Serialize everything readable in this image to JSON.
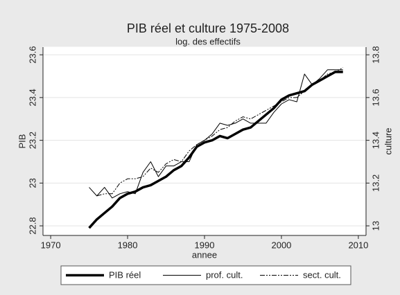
{
  "chart_data": {
    "type": "line",
    "title": "PIB réel et culture 1975-2008",
    "subtitle": "log. des effectifs",
    "x_label": "annee",
    "y_label": "PIB",
    "y2_label": "culture",
    "x": [
      1975,
      1976,
      1977,
      1978,
      1979,
      1980,
      1981,
      1982,
      1983,
      1984,
      1985,
      1986,
      1987,
      1988,
      1989,
      1990,
      1991,
      1992,
      1993,
      1994,
      1995,
      1996,
      1997,
      1998,
      1999,
      2000,
      2001,
      2002,
      2003,
      2004,
      2005,
      2006,
      2007,
      2008
    ],
    "series": [
      {
        "name": "PIB réel",
        "color": "#000000",
        "values": [
          22.79,
          22.83,
          22.86,
          22.89,
          22.93,
          22.95,
          22.96,
          22.98,
          22.99,
          23.01,
          23.03,
          23.06,
          23.08,
          23.12,
          23.17,
          23.19,
          23.2,
          23.22,
          23.21,
          23.23,
          23.25,
          23.26,
          23.29,
          23.32,
          23.35,
          23.39,
          23.41,
          23.42,
          23.43,
          23.46,
          23.48,
          23.5,
          23.52,
          23.52
        ]
      },
      {
        "name": "prof. cult.",
        "color": "#000000",
        "axis": "y2",
        "values": [
          13.18,
          13.14,
          13.18,
          13.13,
          13.15,
          13.16,
          13.15,
          13.25,
          13.3,
          13.23,
          13.28,
          13.28,
          13.3,
          13.3,
          13.38,
          13.4,
          13.43,
          13.48,
          13.47,
          13.48,
          13.5,
          13.48,
          13.48,
          13.48,
          13.53,
          13.57,
          13.59,
          13.58,
          13.71,
          13.66,
          13.69,
          13.73,
          13.73,
          13.73
        ]
      },
      {
        "name": "sect. cult.",
        "color": "#000000",
        "axis": "y2",
        "values": [
          null,
          13.14,
          13.15,
          13.15,
          13.2,
          13.22,
          13.22,
          13.23,
          13.27,
          13.25,
          13.29,
          13.31,
          13.3,
          13.35,
          13.38,
          13.4,
          13.42,
          13.45,
          13.46,
          13.49,
          13.51,
          13.5,
          13.52,
          13.54,
          13.56,
          13.58,
          13.6,
          13.6,
          13.63,
          13.66,
          13.68,
          13.71,
          13.72,
          13.74
        ]
      }
    ],
    "xlim": [
      1969,
      2011
    ],
    "xticks": [
      1970,
      1980,
      1990,
      2000,
      2010
    ],
    "ylim": [
      22.755,
      23.636
    ],
    "yticks": [
      22.8,
      23,
      23.2,
      23.4,
      23.6
    ],
    "y2lim": [
      12.955,
      13.836
    ],
    "y2ticks": [
      13,
      13.2,
      13.4,
      13.6,
      13.8
    ],
    "grid": true,
    "legend": "bottom"
  }
}
